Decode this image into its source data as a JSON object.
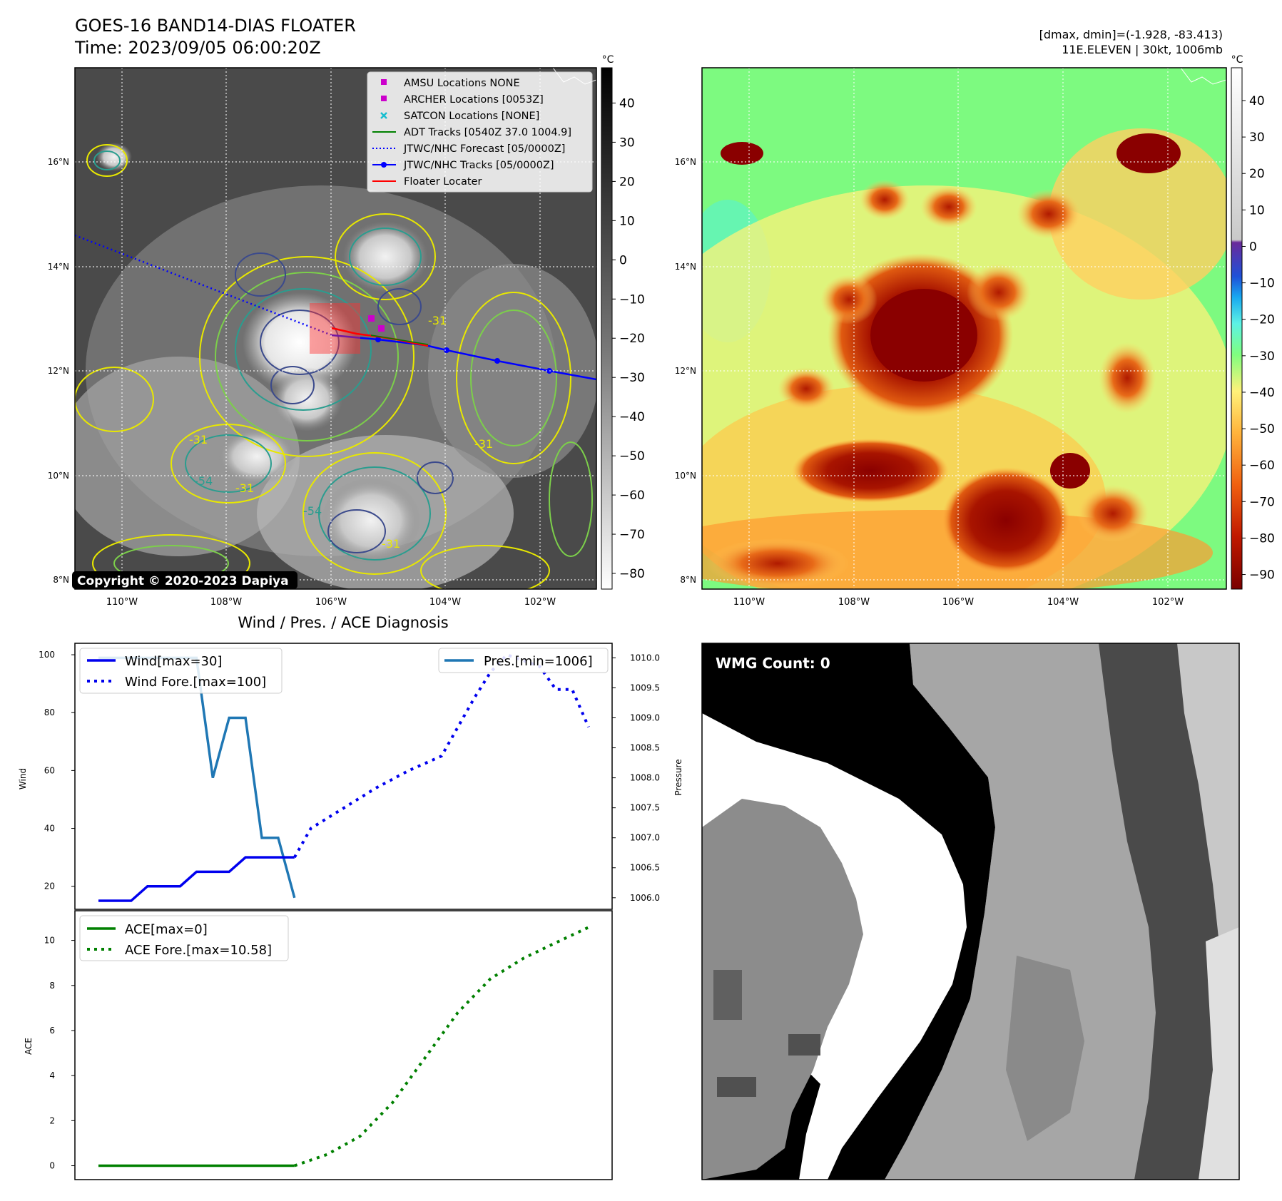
{
  "header": {
    "title": "GOES-16 BAND14-DIAS FLOATER",
    "time": "Time: 2023/09/05 06:00:20Z",
    "dinfo": "[dmax, dmin]=(-1.928, -83.413)",
    "storm": "11E.ELEVEN | 30kt, 1006mb"
  },
  "copyright": "Copyright © 2020-2023 Dapiya",
  "wmg_count": "WMG Count: 0",
  "colors": {
    "wind": "#0000ee",
    "pressure": "#1f77b4",
    "ace": "#008000",
    "forecast_track": "#0000ff",
    "floater": "#ff0000",
    "archer": "#cc00cc",
    "contour_yellow": "#e8e800",
    "contour_green": "#7ccf4a",
    "contour_teal": "#2a9d8f",
    "contour_navy": "#3b4a8c"
  },
  "chart_data": [
    {
      "type": "map-image",
      "name": "ir-grayscale-map",
      "x_ticks": [
        "110°W",
        "108°W",
        "106°W",
        "104°W",
        "102°W"
      ],
      "y_ticks": [
        "16°N",
        "14°N",
        "12°N",
        "10°N",
        "8°N"
      ],
      "colorbar": {
        "unit": "°C",
        "ticks": [
          40,
          30,
          20,
          10,
          0,
          -10,
          -20,
          -30,
          -40,
          -50,
          -60,
          -70,
          -80
        ]
      },
      "contour_labels": [
        "-31",
        "-31",
        "-31",
        "-54",
        "-31",
        "-54",
        "-31"
      ],
      "legend": [
        {
          "label": "AMSU Locations NONE",
          "marker": "square",
          "color": "#cc00cc"
        },
        {
          "label": "ARCHER Locations [0053Z]",
          "marker": "square",
          "color": "#cc00cc"
        },
        {
          "label": "SATCON Locations [NONE]",
          "marker": "x",
          "color": "#17becf"
        },
        {
          "label": "ADT Tracks [0540Z 37.0 1004.9]",
          "marker": "line",
          "color": "#008000"
        },
        {
          "label": "JTWC/NHC Forecast [05/0000Z]",
          "marker": "dotted",
          "color": "#0000ff"
        },
        {
          "label": "JTWC/NHC Tracks [05/0000Z]",
          "marker": "line-dot",
          "color": "#0000ff"
        },
        {
          "label": "Floater Locater",
          "marker": "line",
          "color": "#ff0000"
        }
      ]
    },
    {
      "type": "map-image",
      "name": "ir-color-enhanced-map",
      "x_ticks": [
        "110°W",
        "108°W",
        "106°W",
        "104°W",
        "102°W"
      ],
      "y_ticks": [
        "16°N",
        "14°N",
        "12°N",
        "10°N",
        "8°N"
      ],
      "colorbar": {
        "unit": "°C",
        "ticks": [
          40,
          30,
          20,
          10,
          0,
          -10,
          -20,
          -30,
          -40,
          -50,
          -60,
          -70,
          -80,
          -90
        ]
      }
    },
    {
      "type": "line",
      "title": "Wind / Pres. / ACE Diagnosis",
      "xlim": [
        0,
        30
      ],
      "ylabel": "Wind",
      "ylim": [
        15,
        101
      ],
      "yticks": [
        20,
        40,
        60,
        80,
        100
      ],
      "y2label": "Pressure",
      "y2lim": [
        1005.95,
        1010.1
      ],
      "y2ticks": [
        1006.0,
        1006.5,
        1007.0,
        1007.5,
        1008.0,
        1008.5,
        1009.0,
        1009.5,
        1010.0
      ],
      "series": [
        {
          "name": "Wind[max=30]",
          "axis": "left",
          "style": "solid",
          "x": [
            0,
            2,
            3,
            4,
            5,
            6,
            7,
            8,
            9,
            10,
            11,
            12
          ],
          "y": [
            15,
            15,
            20,
            20,
            20,
            25,
            25,
            25,
            30,
            30,
            30,
            30
          ]
        },
        {
          "name": "Wind Fore.[max=100]",
          "axis": "left",
          "style": "dotted",
          "x": [
            12,
            13,
            15,
            17,
            19,
            21,
            22,
            23,
            24,
            25,
            26,
            27,
            28,
            29,
            30
          ],
          "y": [
            30,
            40,
            47,
            54,
            60,
            65,
            75,
            85,
            94,
            100,
            98,
            96,
            88,
            88,
            75
          ]
        },
        {
          "name": "Pres.[min=1006]",
          "axis": "right",
          "style": "solid",
          "x": [
            0,
            6,
            7,
            8,
            9,
            10,
            11,
            12
          ],
          "y2": [
            1010.0,
            1010.0,
            1008.0,
            1009.0,
            1009.0,
            1007.0,
            1007.0,
            1006.0
          ]
        }
      ]
    },
    {
      "type": "line",
      "ylabel": "ACE",
      "xlim": [
        0,
        30
      ],
      "ylim": [
        -0.3,
        11.0
      ],
      "yticks": [
        0,
        2,
        4,
        6,
        8,
        10
      ],
      "series": [
        {
          "name": "ACE[max=0]",
          "style": "solid",
          "x": [
            0,
            12
          ],
          "y": [
            0,
            0
          ]
        },
        {
          "name": "ACE Fore.[max=10.58]",
          "style": "dotted",
          "x": [
            12,
            14,
            16,
            18,
            20,
            22,
            24,
            26,
            28,
            30
          ],
          "y": [
            0.0,
            0.5,
            1.3,
            2.8,
            4.8,
            6.8,
            8.3,
            9.2,
            9.9,
            10.58
          ]
        }
      ]
    }
  ]
}
